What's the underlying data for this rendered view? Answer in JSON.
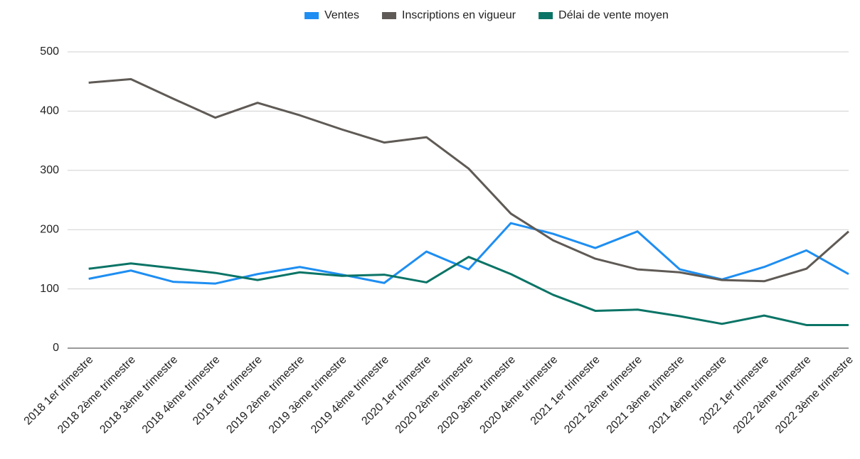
{
  "chart_data": {
    "type": "line",
    "categories": [
      "2018 1er trimestre",
      "2018 2ème trimestre",
      "2018 3ème trimestre",
      "2018 4ème trimestre",
      "2019 1er trimestre",
      "2019 2ème trimestre",
      "2019 3ème trimestre",
      "2019 4ème trimestre",
      "2020 1er trimestre",
      "2020 2ème trimestre",
      "2020 3ème trimestre",
      "2020 4ème trimestre",
      "2021 1er trimestre",
      "2021 2ème trimestre",
      "2021 3ème trimestre",
      "2021 4ème trimestre",
      "2022 1er trimestre",
      "2022 2ème trimestre",
      "2022 3ème trimestre"
    ],
    "series": [
      {
        "name": "Ventes",
        "color": "#1e8ef2",
        "values": [
          117,
          131,
          112,
          109,
          125,
          137,
          124,
          110,
          163,
          133,
          211,
          193,
          169,
          197,
          133,
          116,
          137,
          165,
          125
        ]
      },
      {
        "name": "Inscriptions en vigueur",
        "color": "#5f5a55",
        "values": [
          448,
          454,
          421,
          389,
          414,
          393,
          369,
          347,
          356,
          303,
          227,
          182,
          151,
          133,
          128,
          115,
          113,
          134,
          197
        ]
      },
      {
        "name": "Délai de vente moyen",
        "color": "#0a7466",
        "values": [
          134,
          143,
          135,
          127,
          115,
          128,
          122,
          124,
          111,
          154,
          125,
          90,
          63,
          65,
          54,
          41,
          55,
          39,
          39
        ]
      }
    ],
    "ylim": [
      0,
      500
    ],
    "yticks": [
      0,
      100,
      200,
      300,
      400,
      500
    ],
    "grid": true,
    "legend": "top"
  }
}
